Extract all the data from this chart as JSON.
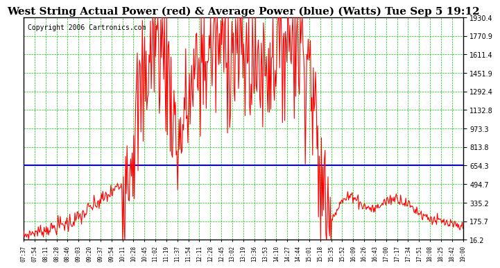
{
  "title": "West String Actual Power (red) & Average Power (blue) (Watts) Tue Sep 5 19:12",
  "copyright": "Copyright 2006 Cartronics.com",
  "ylabel_values": [
    1930.4,
    1770.9,
    1611.4,
    1451.9,
    1292.4,
    1132.8,
    973.3,
    813.8,
    654.3,
    494.7,
    335.2,
    175.7,
    16.2
  ],
  "avg_power": 654.3,
  "ymin": 16.2,
  "ymax": 1930.4,
  "x_labels": [
    "07:37",
    "07:54",
    "08:11",
    "08:28",
    "08:46",
    "09:03",
    "09:20",
    "09:37",
    "09:54",
    "10:11",
    "10:28",
    "10:45",
    "11:02",
    "11:19",
    "11:37",
    "11:54",
    "12:11",
    "12:28",
    "12:45",
    "13:02",
    "13:19",
    "13:36",
    "13:53",
    "14:10",
    "14:27",
    "14:44",
    "15:01",
    "15:18",
    "15:35",
    "15:52",
    "16:09",
    "16:26",
    "16:43",
    "17:00",
    "17:17",
    "17:34",
    "17:51",
    "18:08",
    "18:25",
    "18:42",
    "19:00"
  ],
  "bg_color": "#ffffff",
  "plot_bg": "#ffffff",
  "red_color": "#ff0000",
  "blue_color": "#0000ff",
  "grid_color": "#00cc00",
  "title_fontsize": 11,
  "copyright_fontsize": 7
}
